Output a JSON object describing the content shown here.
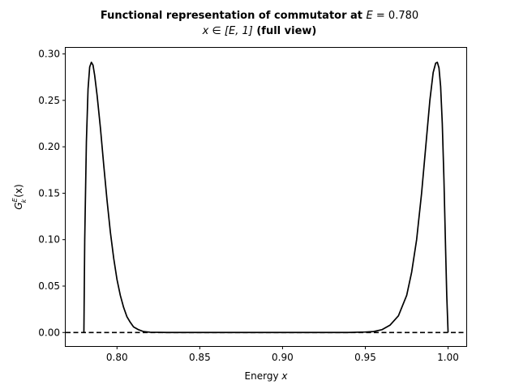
{
  "chart_data": {
    "type": "line",
    "title": {
      "line1_prefix": "Functional representation of commutator at ",
      "line1_var": "E",
      "line1_eq": " = 0.780",
      "line2_math": "x ∈ [E, 1]",
      "line2_bold": " (full view)"
    },
    "xlabel": {
      "text": "Energy ",
      "var": "x"
    },
    "ylabel": {
      "main": "G",
      "sup": "E",
      "sub": "k",
      "arg": "(x)"
    },
    "xlim": [
      0.769,
      1.011
    ],
    "ylim": [
      -0.0146,
      0.3066
    ],
    "xticks": [
      0.8,
      0.85,
      0.9,
      0.95,
      1.0
    ],
    "xtick_labels": [
      "0.80",
      "0.85",
      "0.90",
      "0.95",
      "1.00"
    ],
    "yticks": [
      0.0,
      0.05,
      0.1,
      0.15,
      0.2,
      0.25,
      0.3
    ],
    "ytick_labels": [
      "0.00",
      "0.05",
      "0.10",
      "0.15",
      "0.20",
      "0.25",
      "0.30"
    ],
    "grid": false,
    "series": [
      {
        "style": "solid",
        "color": "#000000",
        "x": [
          0.78,
          0.7805,
          0.7815,
          0.7825,
          0.7835,
          0.7845,
          0.7855,
          0.7865,
          0.788,
          0.79,
          0.792,
          0.794,
          0.796,
          0.798,
          0.8,
          0.802,
          0.804,
          0.806,
          0.808,
          0.81,
          0.813,
          0.816,
          0.82,
          0.83,
          0.85,
          0.9,
          0.94,
          0.95,
          0.955,
          0.96,
          0.965,
          0.97,
          0.975,
          0.978,
          0.981,
          0.984,
          0.987,
          0.989,
          0.991,
          0.9925,
          0.9935,
          0.9945,
          0.9955,
          0.9965,
          0.9975,
          0.9985,
          0.9992,
          1.0
        ],
        "y": [
          0.0,
          0.1,
          0.205,
          0.262,
          0.286,
          0.291,
          0.288,
          0.277,
          0.255,
          0.22,
          0.18,
          0.142,
          0.108,
          0.08,
          0.057,
          0.04,
          0.027,
          0.017,
          0.011,
          0.006,
          0.003,
          0.001,
          0.0003,
          0.0,
          0.0,
          0.0,
          0.0,
          0.0005,
          0.001,
          0.003,
          0.008,
          0.018,
          0.04,
          0.065,
          0.1,
          0.15,
          0.21,
          0.25,
          0.28,
          0.29,
          0.291,
          0.285,
          0.265,
          0.225,
          0.165,
          0.09,
          0.04,
          0.0
        ]
      },
      {
        "style": "dashed",
        "color": "#000000",
        "x": [
          0.769,
          1.011
        ],
        "y": [
          0.0,
          0.0
        ]
      }
    ]
  }
}
